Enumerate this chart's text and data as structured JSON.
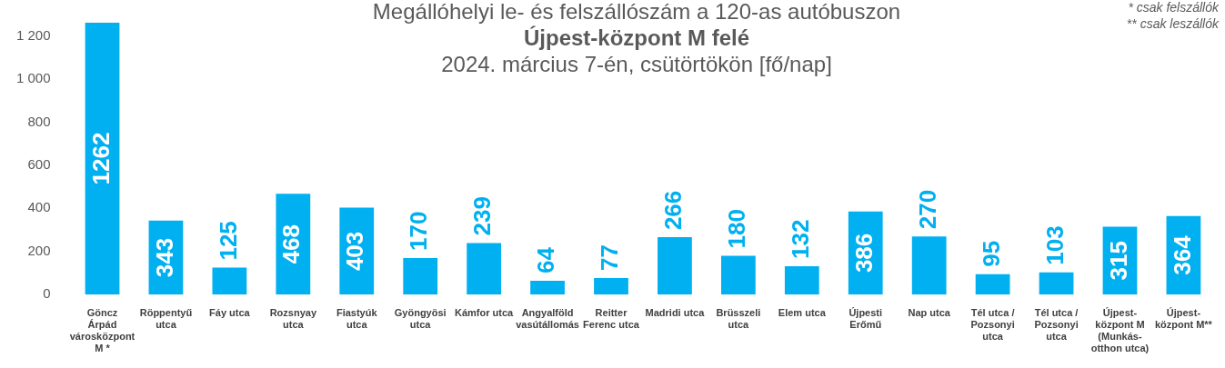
{
  "chart_data": {
    "type": "bar",
    "title": "Megállóhelyi le- és felszállószám a 120-as autóbuszon",
    "subtitle": "Újpest-központ M felé",
    "annotations": [
      "2024. március 7-én, csütörtökön [fő/nap]",
      "* csak felszállók",
      "** csak leszállók"
    ],
    "categories": [
      "Göncz Árpád városközpont M *",
      "Röppentyű utca",
      "Fáy utca",
      "Rozsnyay utca",
      "Fiastyúk utca",
      "Gyöngyösi utca",
      "Kámfor utca",
      "Angyalföld vasútállomás",
      "Reitter Ferenc utca",
      "Madridi utca",
      "Brüsszeli utca",
      "Elem utca",
      "Újpesti Erőmű",
      "Nap utca",
      "Tél utca / Pozsonyi utca",
      "Tél utca / Pozsonyi utca",
      "Újpest-központ M (Munkás-otthon utca)",
      "Újpest-központ M**"
    ],
    "values": [
      1262,
      343,
      125,
      468,
      403,
      170,
      239,
      64,
      77,
      266,
      180,
      132,
      386,
      270,
      95,
      103,
      315,
      364
    ],
    "color": "#00b0f0",
    "data_labels": true,
    "legend": false,
    "grid": false,
    "ylim": [
      0,
      1270
    ],
    "yticks": [
      0,
      200,
      400,
      600,
      800,
      {
        "value": 1000,
        "label": "1 000"
      },
      {
        "value": 1200,
        "label": "1 200"
      }
    ]
  }
}
